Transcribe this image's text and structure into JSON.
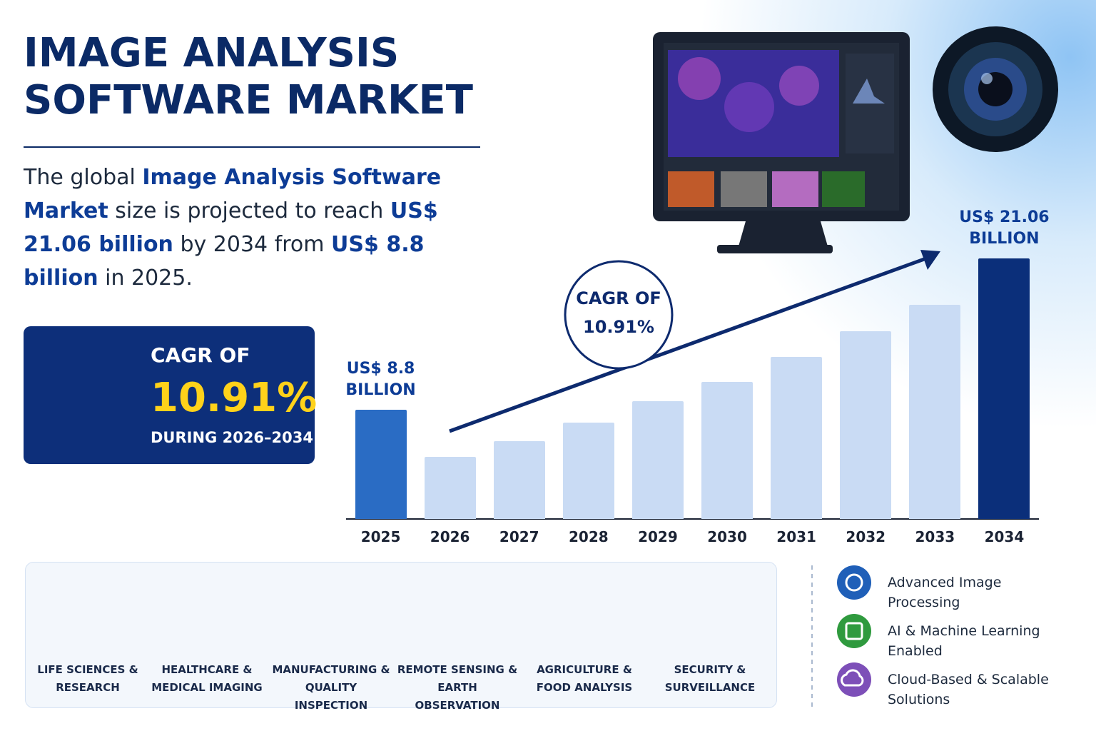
{
  "header": {
    "title": "IMAGE ANALYSIS SOFTWARE MARKET"
  },
  "intro": [
    "The global ",
    "Image Analysis Software Market",
    " size is projected to reach ",
    "US$ 21.06 billion",
    " by 2034 from ",
    "US$ 8.8 billion",
    " in 2025."
  ],
  "cagr_box": {
    "label": "CAGR OF",
    "value": "10.91%",
    "period": "DURING 2026–2034"
  },
  "chart_data": {
    "type": "bar",
    "categories": [
      "2025",
      "2026",
      "2027",
      "2028",
      "2029",
      "2030",
      "2031",
      "2032",
      "2033",
      "2034"
    ],
    "values": [
      8.8,
      5.0,
      6.3,
      7.8,
      9.5,
      11.1,
      13.1,
      15.2,
      17.3,
      21.06
    ],
    "value_labels": [
      "US$ 8.8 BILLION",
      null,
      null,
      null,
      null,
      null,
      null,
      null,
      null,
      "US$ 21.06 BILLION"
    ],
    "colors": [
      "#2a6cc4",
      "#c9dbf4",
      "#c9dbf4",
      "#c9dbf4",
      "#c9dbf4",
      "#c9dbf4",
      "#c9dbf4",
      "#c9dbf4",
      "#c9dbf4",
      "#0b2f7a"
    ],
    "annotation": "CAGR OF 10.91%"
  },
  "sectors": [
    "LIFE SCIENCES & RESEARCH",
    "HEALTHCARE & MEDICAL IMAGING",
    "MANUFACTURING & QUALITY INSPECTION",
    "REMOTE SENSING & EARTH OBSERVATION",
    "AGRICULTURE & FOOD ANALYSIS",
    "SECURITY & SURVEILLANCE"
  ],
  "features": [
    "Advanced Image Processing",
    "AI & Machine Learning Enabled",
    "Cloud-Based & Scalable Solutions"
  ]
}
